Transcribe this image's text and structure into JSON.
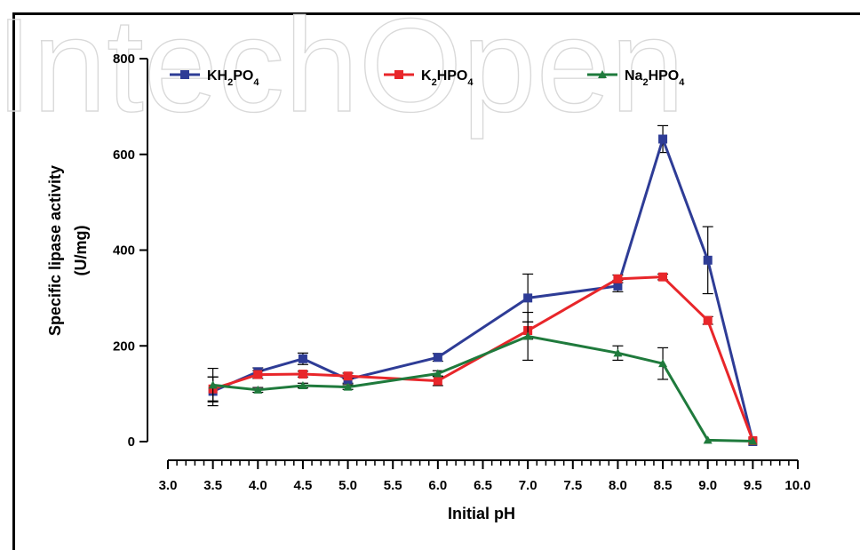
{
  "watermark": "IntechOpen",
  "chart_data": {
    "type": "line",
    "xlabel": "Initial pH",
    "ylabel_line1": "Specific lipase activity",
    "ylabel_line2": "(U/mg)",
    "xlim": [
      3.0,
      10.0
    ],
    "ylim": [
      0,
      800
    ],
    "x_ticks": [
      "3.0",
      "3.5",
      "4.0",
      "4.5",
      "5.0",
      "5.5",
      "6.0",
      "6.5",
      "7.0",
      "7.5",
      "8.0",
      "8.5",
      "9.0",
      "9.5",
      "10.0"
    ],
    "y_ticks": [
      "0",
      "200",
      "400",
      "600",
      "800"
    ],
    "grid": false,
    "legend_position": "top-left",
    "series": [
      {
        "name": "KH2PO4",
        "legend_main": "KH",
        "legend_sub1": "2",
        "legend_mid": "PO",
        "legend_sub2": "4",
        "color": "#2e3c96",
        "marker": "square",
        "x": [
          3.5,
          4.0,
          4.5,
          5.0,
          6.0,
          7.0,
          8.0,
          8.5,
          9.0,
          9.5
        ],
        "y": [
          105,
          146,
          173,
          130,
          176,
          300,
          325,
          632,
          379,
          0
        ],
        "err": [
          30,
          8,
          12,
          8,
          8,
          50,
          12,
          28,
          70,
          0
        ]
      },
      {
        "name": "K2HPO4",
        "legend_main": "K",
        "legend_sub1": "2",
        "legend_mid": "HPO",
        "legend_sub2": "4",
        "color": "#e8262a",
        "marker": "square",
        "x": [
          3.5,
          4.0,
          4.5,
          5.0,
          6.0,
          7.0,
          8.0,
          8.5,
          9.0,
          9.5
        ],
        "y": [
          110,
          140,
          141,
          137,
          127,
          232,
          340,
          344,
          253,
          2
        ],
        "err": [
          25,
          8,
          6,
          6,
          10,
          18,
          8,
          6,
          8,
          0
        ]
      },
      {
        "name": "Na2HPO4",
        "legend_main": "Na",
        "legend_sub1": "2",
        "legend_mid": "HPO",
        "legend_sub2": "4",
        "color": "#1f7a3c",
        "marker": "triangle",
        "x": [
          3.5,
          4.0,
          4.5,
          5.0,
          6.0,
          7.0,
          8.0,
          8.5,
          9.0,
          9.5
        ],
        "y": [
          118,
          108,
          117,
          114,
          142,
          220,
          185,
          163,
          3,
          1
        ],
        "err": [
          35,
          5,
          5,
          5,
          6,
          50,
          15,
          33,
          0,
          0
        ]
      }
    ]
  }
}
